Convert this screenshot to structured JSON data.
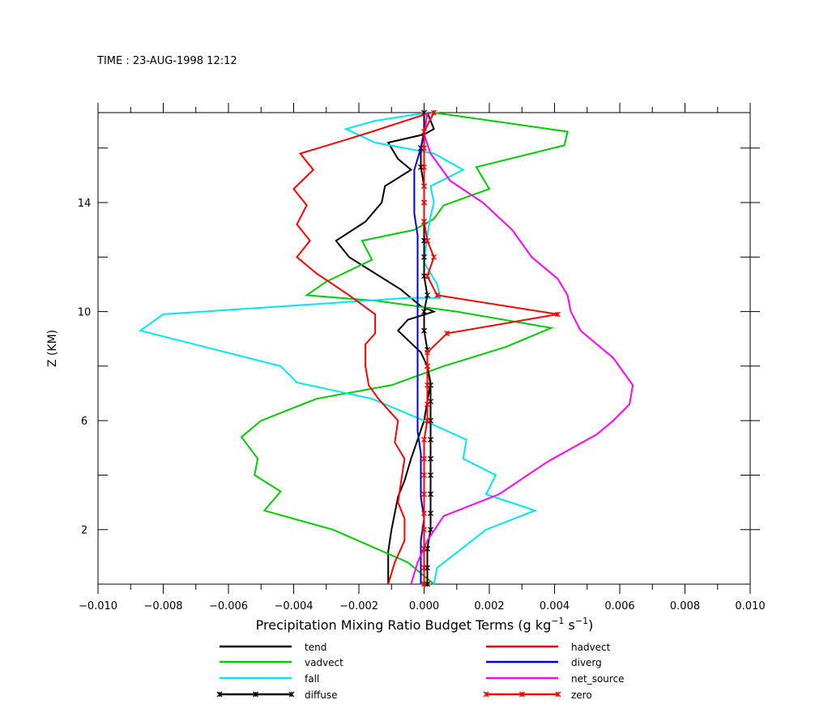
{
  "chart_data": {
    "type": "line",
    "title": "TIME : 23-AUG-1998 12:12",
    "xlabel_main": "Precipitation Mixing Ratio Budget Terms (g kg",
    "xlabel_sup1": "−1",
    "xlabel_mid": " s",
    "xlabel_sup2": "−1",
    "xlabel_end": ")",
    "ylabel": "Z (KM)",
    "xlim": [
      -0.01,
      0.01
    ],
    "ylim": [
      0,
      17.3
    ],
    "xticks": [
      -0.01,
      -0.008,
      -0.006,
      -0.004,
      -0.002,
      0.0,
      0.002,
      0.004,
      0.006,
      0.008,
      0.01
    ],
    "xtick_labels": [
      "−0.010",
      "−0.008",
      "−0.006",
      "−0.004",
      "−0.002",
      "0.000",
      "0.002",
      "0.004",
      "0.006",
      "0.008",
      "0.010"
    ],
    "yticks": [
      2,
      6,
      10,
      14
    ],
    "ytick_labels": [
      "2",
      "6",
      "10",
      "14"
    ],
    "legend_placement": "bottom",
    "series": [
      {
        "name": "tend",
        "color": "#000000",
        "marker": false,
        "points": [
          [
            -0.0011,
            0
          ],
          [
            -0.0011,
            0.6
          ],
          [
            -0.0011,
            1.2
          ],
          [
            -0.001,
            2
          ],
          [
            -0.0009,
            2.6
          ],
          [
            -0.0008,
            3.2
          ],
          [
            -0.0006,
            3.8
          ],
          [
            -0.0004,
            4.6
          ],
          [
            -0.0002,
            5.3
          ],
          [
            0.0,
            6
          ],
          [
            0.0001,
            6.7
          ],
          [
            0.0002,
            7.4
          ],
          [
            0.0001,
            8
          ],
          [
            -0.0001,
            8.5
          ],
          [
            -0.0008,
            9.3
          ],
          [
            -0.0005,
            9.7
          ],
          [
            0.0003,
            10
          ],
          [
            -0.0001,
            10.2
          ],
          [
            -0.0007,
            10.8
          ],
          [
            -0.0015,
            11.4
          ],
          [
            -0.0023,
            12
          ],
          [
            -0.0027,
            12.6
          ],
          [
            -0.0018,
            13.3
          ],
          [
            -0.0013,
            14
          ],
          [
            -0.0012,
            14.6
          ],
          [
            -0.0004,
            15.2
          ],
          [
            -0.0008,
            15.6
          ],
          [
            -0.0011,
            16.2
          ],
          [
            0.0,
            16.5
          ],
          [
            0.0003,
            16.7
          ],
          [
            0.0001,
            17.3
          ]
        ]
      },
      {
        "name": "vadvect",
        "color": "#00cc00",
        "marker": false,
        "points": [
          [
            0.0003,
            0
          ],
          [
            -0.0005,
            0.8
          ],
          [
            -0.0028,
            2
          ],
          [
            -0.0049,
            2.7
          ],
          [
            -0.0044,
            3.4
          ],
          [
            -0.0052,
            4
          ],
          [
            -0.0051,
            4.6
          ],
          [
            -0.0056,
            5.4
          ],
          [
            -0.005,
            6
          ],
          [
            -0.0033,
            6.8
          ],
          [
            -0.001,
            7.3
          ],
          [
            0.0006,
            8
          ],
          [
            0.0025,
            8.7
          ],
          [
            0.0039,
            9.4
          ],
          [
            0.001,
            10
          ],
          [
            -0.0015,
            10.4
          ],
          [
            -0.0036,
            10.6
          ],
          [
            -0.003,
            11.1
          ],
          [
            -0.0016,
            11.9
          ],
          [
            -0.0019,
            12.6
          ],
          [
            -0.0003,
            13
          ],
          [
            0.0003,
            13.4
          ],
          [
            0.0006,
            13.9
          ],
          [
            0.002,
            14.5
          ],
          [
            0.0016,
            15.3
          ],
          [
            0.0043,
            16.1
          ],
          [
            0.0044,
            16.6
          ],
          [
            0.0003,
            17.3
          ]
        ]
      },
      {
        "name": "fall",
        "color": "#00e5ee",
        "marker": false,
        "points": [
          [
            0.0003,
            0
          ],
          [
            0.0004,
            0.6
          ],
          [
            0.0019,
            2
          ],
          [
            0.0034,
            2.7
          ],
          [
            0.0019,
            3.3
          ],
          [
            0.0022,
            4
          ],
          [
            0.0012,
            4.6
          ],
          [
            0.0013,
            5.3
          ],
          [
            0.0,
            6
          ],
          [
            -0.0016,
            6.8
          ],
          [
            -0.0039,
            7.4
          ],
          [
            -0.0044,
            8
          ],
          [
            -0.0087,
            9.3
          ],
          [
            -0.008,
            9.9
          ],
          [
            -0.003,
            10.3
          ],
          [
            -0.0005,
            10.5
          ],
          [
            0.0005,
            10.5
          ],
          [
            0.0004,
            11
          ],
          [
            0.0,
            11.8
          ],
          [
            0.0001,
            12.8
          ],
          [
            0.0002,
            13.5
          ],
          [
            0.0003,
            14
          ],
          [
            0.0002,
            14.6
          ],
          [
            0.0012,
            15.2
          ],
          [
            0.0003,
            15.8
          ],
          [
            -0.0015,
            16.2
          ],
          [
            -0.0024,
            16.7
          ],
          [
            -0.0015,
            17
          ],
          [
            0.0001,
            17.3
          ]
        ]
      },
      {
        "name": "diffuse",
        "color": "#000000",
        "marker": true,
        "points": [
          [
            0.0001,
            0
          ],
          [
            0.0001,
            0.6
          ],
          [
            0.0001,
            1.3
          ],
          [
            0.0002,
            2
          ],
          [
            0.0002,
            2.6
          ],
          [
            0.0002,
            3.3
          ],
          [
            0.0002,
            4
          ],
          [
            0.0002,
            4.6
          ],
          [
            0.0002,
            5.3
          ],
          [
            0.0002,
            6
          ],
          [
            0.0002,
            6.7
          ],
          [
            0.0002,
            7.3
          ],
          [
            0.0001,
            8
          ],
          [
            0.0001,
            8.6
          ],
          [
            0.0,
            9.3
          ],
          [
            0.0,
            10
          ],
          [
            0.0001,
            10.6
          ],
          [
            0.0,
            11.3
          ],
          [
            0.0,
            12
          ],
          [
            0.0,
            12.6
          ],
          [
            0.0,
            13.3
          ],
          [
            0.0,
            14
          ],
          [
            0.0,
            14.6
          ],
          [
            -0.0001,
            15.3
          ],
          [
            -0.0001,
            16
          ],
          [
            0.0,
            16.6
          ],
          [
            0.0,
            17.3
          ]
        ]
      },
      {
        "name": "hadvect",
        "color": "#ff0000",
        "marker": false,
        "points": [
          [
            -0.0011,
            0
          ],
          [
            -0.0009,
            0.8
          ],
          [
            -0.0006,
            1.6
          ],
          [
            -0.0006,
            2.4
          ],
          [
            -0.0008,
            3
          ],
          [
            -0.0007,
            3.8
          ],
          [
            -0.0006,
            4.6
          ],
          [
            -0.0009,
            5.2
          ],
          [
            -0.0008,
            6
          ],
          [
            -0.0014,
            6.8
          ],
          [
            -0.0017,
            7.3
          ],
          [
            -0.0018,
            8
          ],
          [
            -0.0018,
            8.8
          ],
          [
            -0.0015,
            9.2
          ],
          [
            -0.0015,
            9.9
          ],
          [
            -0.0023,
            10.6
          ],
          [
            -0.0033,
            11.4
          ],
          [
            -0.0039,
            12
          ],
          [
            -0.0035,
            12.6
          ],
          [
            -0.0039,
            13.2
          ],
          [
            -0.0036,
            13.9
          ],
          [
            -0.004,
            14.5
          ],
          [
            -0.0034,
            15.2
          ],
          [
            -0.0038,
            15.8
          ],
          [
            -0.0024,
            16.3
          ],
          [
            -0.0016,
            16.6
          ],
          [
            0.0002,
            17.3
          ]
        ]
      },
      {
        "name": "diverg",
        "color": "#0000cc",
        "marker": false,
        "points": [
          [
            -0.0001,
            0
          ],
          [
            -0.0001,
            0.8
          ],
          [
            -0.0001,
            1.6
          ],
          [
            0.0,
            2.4
          ],
          [
            -0.0001,
            3.2
          ],
          [
            -0.0001,
            4
          ],
          [
            -0.0001,
            4.8
          ],
          [
            -0.0002,
            5.6
          ],
          [
            -0.0002,
            6.4
          ],
          [
            -0.0002,
            7.2
          ],
          [
            -0.0002,
            8
          ],
          [
            -0.0002,
            8.8
          ],
          [
            -0.0002,
            9.6
          ],
          [
            -0.0002,
            10.4
          ],
          [
            -0.0002,
            11.2
          ],
          [
            -0.0002,
            12
          ],
          [
            -0.0002,
            12.8
          ],
          [
            -0.0003,
            13.6
          ],
          [
            -0.0003,
            14.4
          ],
          [
            -0.0003,
            15.2
          ],
          [
            -0.0001,
            16
          ],
          [
            0.0,
            16.5
          ],
          [
            0.0001,
            17.3
          ]
        ]
      },
      {
        "name": "net_source",
        "color": "#ff00ff",
        "marker": false,
        "points": [
          [
            -0.0004,
            0
          ],
          [
            -0.0002,
            0.8
          ],
          [
            0.0001,
            1.6
          ],
          [
            0.0006,
            2.5
          ],
          [
            0.0023,
            3.3
          ],
          [
            0.0038,
            4.5
          ],
          [
            0.0053,
            5.5
          ],
          [
            0.0058,
            6
          ],
          [
            0.0063,
            6.6
          ],
          [
            0.0064,
            7.3
          ],
          [
            0.0058,
            8.3
          ],
          [
            0.0048,
            9.3
          ],
          [
            0.0045,
            10
          ],
          [
            0.0044,
            10.6
          ],
          [
            0.0041,
            11.2
          ],
          [
            0.0033,
            12
          ],
          [
            0.0027,
            13
          ],
          [
            0.0018,
            14
          ],
          [
            0.0008,
            14.8
          ],
          [
            0.0002,
            15.8
          ],
          [
            0.0,
            16.5
          ],
          [
            0.0001,
            17.3
          ]
        ]
      },
      {
        "name": "zero",
        "color": "#ff0000",
        "marker": true,
        "points": [
          [
            0.0,
            0
          ],
          [
            0.0,
            0.6
          ],
          [
            0.0,
            1.3
          ],
          [
            0.0,
            2
          ],
          [
            0.0,
            2.6
          ],
          [
            0.0,
            3.3
          ],
          [
            0.0,
            4
          ],
          [
            0.0,
            4.6
          ],
          [
            0.0,
            5.3
          ],
          [
            0.0001,
            6
          ],
          [
            0.0001,
            6.6
          ],
          [
            0.0001,
            7.3
          ],
          [
            0.0001,
            8
          ],
          [
            0.0001,
            8.5
          ],
          [
            0.0007,
            9.2
          ],
          [
            0.0041,
            9.9
          ],
          [
            0.0004,
            10.6
          ],
          [
            0.0001,
            11.3
          ],
          [
            0.0003,
            12
          ],
          [
            0.0001,
            12.6
          ],
          [
            0.0,
            13.3
          ],
          [
            0.0,
            14
          ],
          [
            0.0,
            14.6
          ],
          [
            0.0,
            15.3
          ],
          [
            0.0,
            16
          ],
          [
            0.0,
            16.6
          ],
          [
            0.0003,
            17.3
          ]
        ]
      }
    ]
  }
}
